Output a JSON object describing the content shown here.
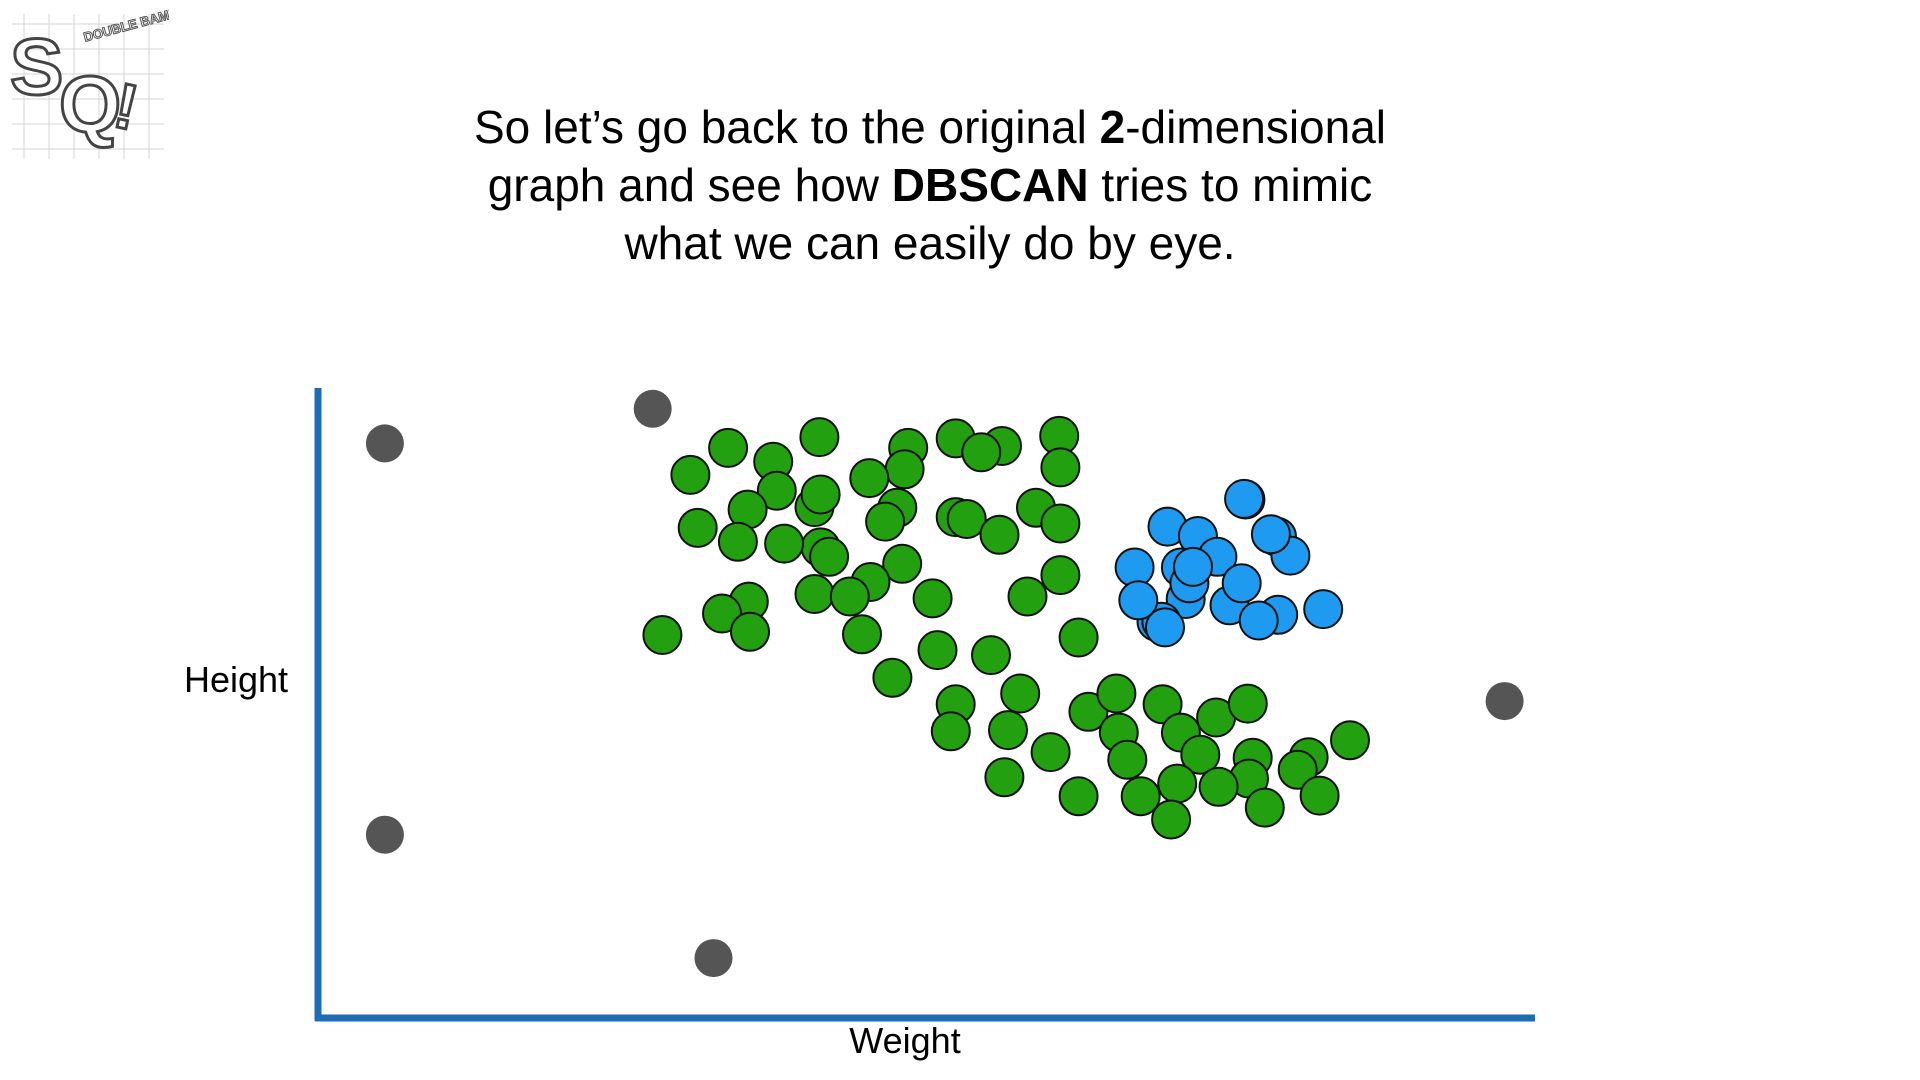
{
  "logo": {
    "letters": "SQ",
    "burst_text": "DOUBLE BAM!!!",
    "icon": "statquest-logo"
  },
  "caption": {
    "line1_a": "So let’s go back to the original ",
    "line1_bold": "2",
    "line1_b": "-dimensional",
    "line2_a": "graph and see how ",
    "line2_bold": "DBSCAN",
    "line2_b": " tries to mimic",
    "line3": "what we can easily do by eye."
  },
  "chart_data": {
    "type": "scatter",
    "xlabel": "Weight",
    "ylabel": "Height",
    "xlim": [
      0,
      100
    ],
    "ylim": [
      0,
      100
    ],
    "grid": false,
    "legend": "none",
    "colors": {
      "axis": "#1b6db5",
      "green_cluster": "#22a010",
      "blue_cluster": "#1e9bf0",
      "outlier": "#555555",
      "outline": "#111111"
    },
    "series": [
      {
        "color": "#22a010",
        "points": [
          [
            33.7,
            90.5
          ],
          [
            41.2,
            92.2
          ],
          [
            48.5,
            90.5
          ],
          [
            52.4,
            92.0
          ],
          [
            60.9,
            92.4
          ],
          [
            56.2,
            90.8
          ],
          [
            48.2,
            87.1
          ],
          [
            54.5,
            89.8
          ],
          [
            61.0,
            87.4
          ],
          [
            37.4,
            88.3
          ],
          [
            30.6,
            86.2
          ],
          [
            37.7,
            83.7
          ],
          [
            35.3,
            80.7
          ],
          [
            40.8,
            81.1
          ],
          [
            41.3,
            83.1
          ],
          [
            47.6,
            81.0
          ],
          [
            45.3,
            85.7
          ],
          [
            52.4,
            79.5
          ],
          [
            41.3,
            74.7
          ],
          [
            31.2,
            77.8
          ],
          [
            34.5,
            75.6
          ],
          [
            38.3,
            75.3
          ],
          [
            42.0,
            73.2
          ],
          [
            46.6,
            78.8
          ],
          [
            53.3,
            79.2
          ],
          [
            59.0,
            81.0
          ],
          [
            61.0,
            78.5
          ],
          [
            56.0,
            76.7
          ],
          [
            61.0,
            70.3
          ],
          [
            48.0,
            72.1
          ],
          [
            45.4,
            69.2
          ],
          [
            35.4,
            66.1
          ],
          [
            40.8,
            67.3
          ],
          [
            33.2,
            64.2
          ],
          [
            43.7,
            66.9
          ],
          [
            50.5,
            66.6
          ],
          [
            28.3,
            60.8
          ],
          [
            35.5,
            61.3
          ],
          [
            58.3,
            66.9
          ],
          [
            44.7,
            60.9
          ],
          [
            62.5,
            60.4
          ],
          [
            50.9,
            58.4
          ],
          [
            55.3,
            57.6
          ],
          [
            47.2,
            54.0
          ],
          [
            52.4,
            49.8
          ],
          [
            57.7,
            51.5
          ],
          [
            63.3,
            48.6
          ],
          [
            65.6,
            51.5
          ],
          [
            69.4,
            49.8
          ],
          [
            70.9,
            45.3
          ],
          [
            65.8,
            45.3
          ],
          [
            73.8,
            47.7
          ],
          [
            76.4,
            49.9
          ],
          [
            52.0,
            45.5
          ],
          [
            56.7,
            45.7
          ],
          [
            60.2,
            42.2
          ],
          [
            66.5,
            41.0
          ],
          [
            72.5,
            41.8
          ],
          [
            76.8,
            41.3
          ],
          [
            81.4,
            41.4
          ],
          [
            84.8,
            44.1
          ],
          [
            80.5,
            39.4
          ],
          [
            76.5,
            38.0
          ],
          [
            70.6,
            37.2
          ],
          [
            56.4,
            38.2
          ],
          [
            62.5,
            35.2
          ],
          [
            67.6,
            35.2
          ],
          [
            74.0,
            36.7
          ],
          [
            70.1,
            31.5
          ],
          [
            82.3,
            35.3
          ],
          [
            77.8,
            33.4
          ]
        ]
      },
      {
        "color": "#1e9bf0",
        "points": [
          [
            76.2,
            82.3
          ],
          [
            69.8,
            78.0
          ],
          [
            72.3,
            76.5
          ],
          [
            78.8,
            76.4
          ],
          [
            73.9,
            73.2
          ],
          [
            79.9,
            73.4
          ],
          [
            70.9,
            71.5
          ],
          [
            67.1,
            71.5
          ],
          [
            68.9,
            62.9
          ],
          [
            74.9,
            65.5
          ],
          [
            71.3,
            66.5
          ],
          [
            78.9,
            64.0
          ],
          [
            77.3,
            63.1
          ],
          [
            82.6,
            64.9
          ],
          [
            69.3,
            62.9
          ],
          [
            75.9,
            69.0
          ],
          [
            78.3,
            76.8
          ],
          [
            71.6,
            69.0
          ],
          [
            69.6,
            62.0
          ],
          [
            67.4,
            66.3
          ],
          [
            71.9,
            71.6
          ],
          [
            76.1,
            82.4
          ]
        ]
      },
      {
        "color": "#555555",
        "points": [
          [
            5.5,
            91.2
          ],
          [
            27.5,
            96.7
          ],
          [
            97.5,
            50.3
          ],
          [
            5.5,
            29.1
          ],
          [
            32.5,
            9.5
          ]
        ]
      }
    ]
  }
}
